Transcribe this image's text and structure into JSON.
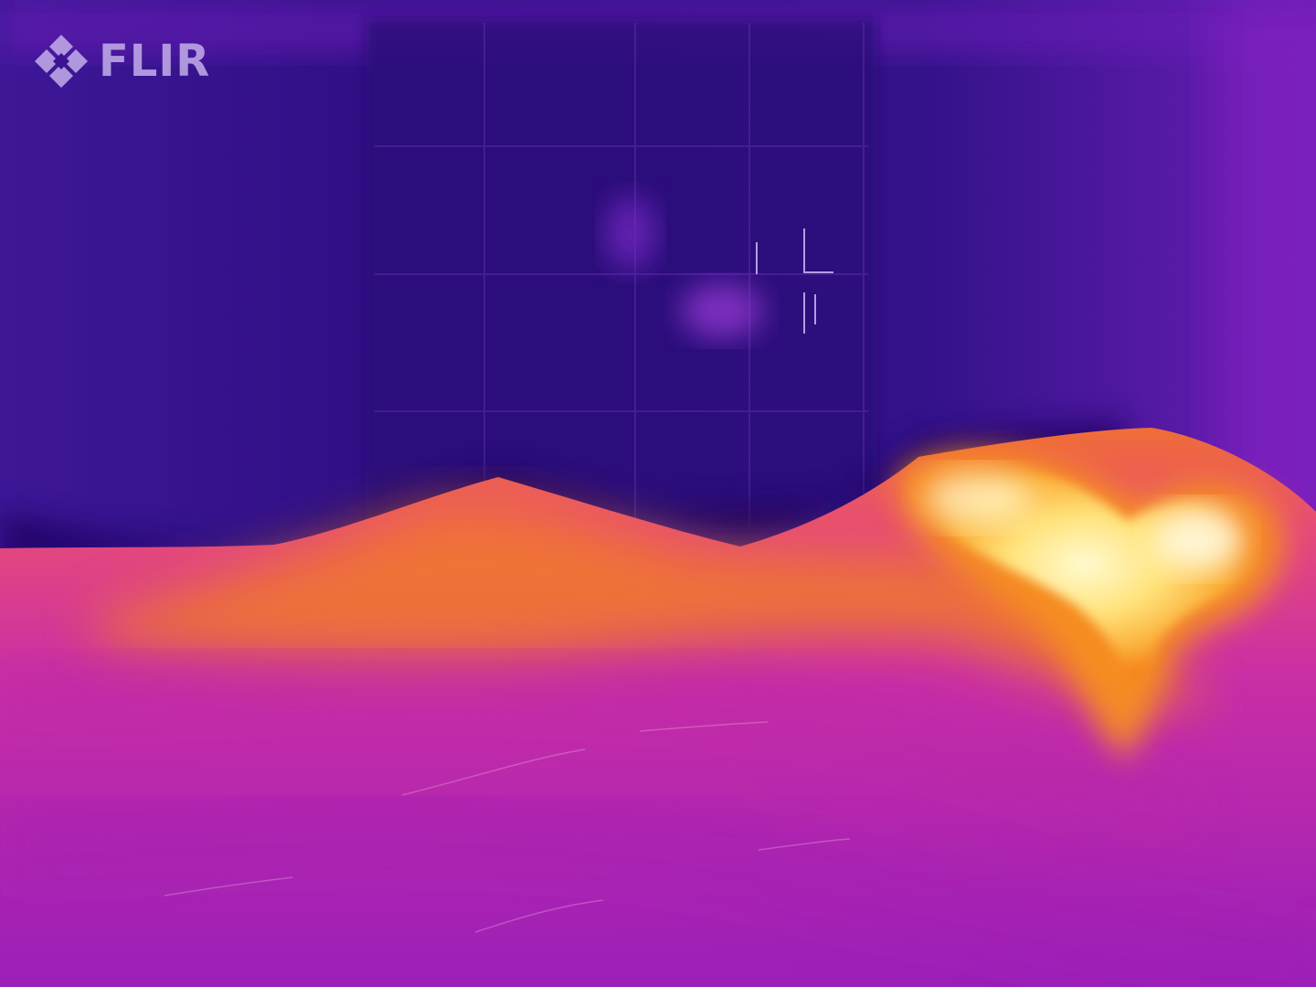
{
  "watermark": {
    "text": "FLIR",
    "icon": "flir-diamond-logo-icon"
  },
  "palette": {
    "cold": "#2a0e7a",
    "wall": "#3b1594",
    "mid": "#8a22c4",
    "warm": "#e2308f",
    "hot": "#fa8c1a",
    "hottest": "#fff3a0"
  }
}
